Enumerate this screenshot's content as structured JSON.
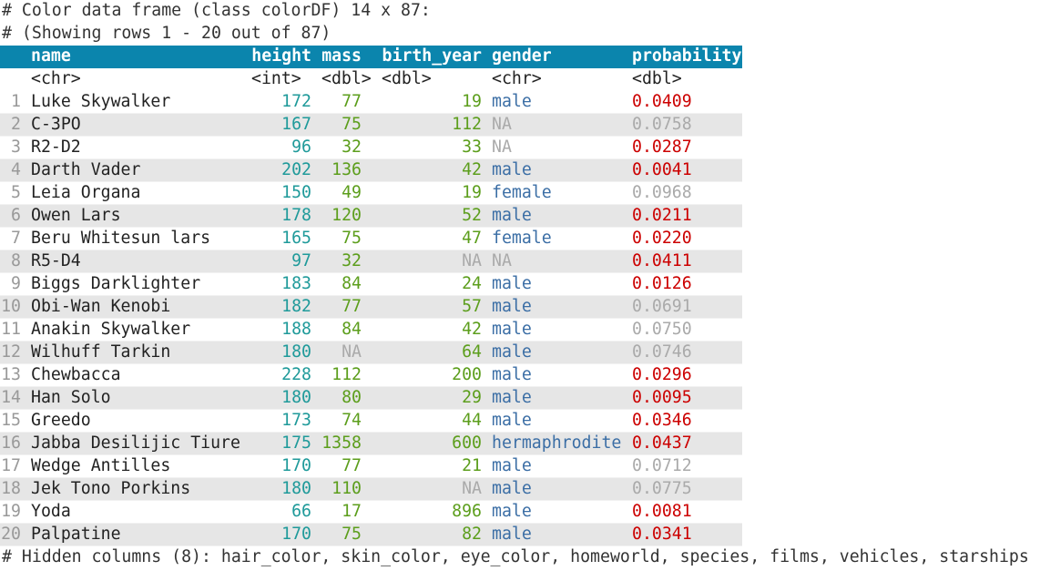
{
  "console": {
    "header_lines": [
      "# Color data frame (class colorDF) 14 x 87:",
      "# (Showing rows 1 - 20 out of 87)"
    ],
    "footer": "# Hidden columns (8): hair_color, skin_color, eye_color, homeworld, species, films, vehicles, starships",
    "header_background": "#0b85ad",
    "stripe_color": "#e6e6e6",
    "na_label": "NA",
    "na_color": "#aaaaaa",
    "row_number_color": "#999999",
    "columns": [
      {
        "name": "name",
        "type": "<chr>",
        "color": "#222222",
        "align": "left"
      },
      {
        "name": "height",
        "type": "<int>",
        "color": "#1f9a9a",
        "align": "right"
      },
      {
        "name": "mass",
        "type": "<dbl>",
        "color": "#5c9e1c",
        "align": "right"
      },
      {
        "name": "birth_year",
        "type": "<dbl>",
        "color": "#5c9e1c",
        "align": "right"
      },
      {
        "name": "gender",
        "type": "<chr>",
        "color": "#3b6ea5",
        "align": "left"
      },
      {
        "name": "probability",
        "type": "<dbl>",
        "color": "#cc0000",
        "align": "left"
      }
    ],
    "rows": [
      [
        "1",
        "Luke Skywalker",
        "172",
        "77",
        "19",
        "male",
        "0.0409"
      ],
      [
        "2",
        "C-3PO",
        "167",
        "75",
        "112",
        "NA",
        "0.0758"
      ],
      [
        "3",
        "R2-D2",
        "96",
        "32",
        "33",
        "NA",
        "0.0287"
      ],
      [
        "4",
        "Darth Vader",
        "202",
        "136",
        "42",
        "male",
        "0.0041"
      ],
      [
        "5",
        "Leia Organa",
        "150",
        "49",
        "19",
        "female",
        "0.0968"
      ],
      [
        "6",
        "Owen Lars",
        "178",
        "120",
        "52",
        "male",
        "0.0211"
      ],
      [
        "7",
        "Beru Whitesun lars",
        "165",
        "75",
        "47",
        "female",
        "0.0220"
      ],
      [
        "8",
        "R5-D4",
        "97",
        "32",
        "NA",
        "NA",
        "0.0411"
      ],
      [
        "9",
        "Biggs Darklighter",
        "183",
        "84",
        "24",
        "male",
        "0.0126"
      ],
      [
        "10",
        "Obi-Wan Kenobi",
        "182",
        "77",
        "57",
        "male",
        "0.0691"
      ],
      [
        "11",
        "Anakin Skywalker",
        "188",
        "84",
        "42",
        "male",
        "0.0750"
      ],
      [
        "12",
        "Wilhuff Tarkin",
        "180",
        "NA",
        "64",
        "male",
        "0.0746"
      ],
      [
        "13",
        "Chewbacca",
        "228",
        "112",
        "200",
        "male",
        "0.0296"
      ],
      [
        "14",
        "Han Solo",
        "180",
        "80",
        "29",
        "male",
        "0.0095"
      ],
      [
        "15",
        "Greedo",
        "173",
        "74",
        "44",
        "male",
        "0.0346"
      ],
      [
        "16",
        "Jabba Desilijic Tiure",
        "175",
        "1358",
        "600",
        "hermaphrodite",
        "0.0437"
      ],
      [
        "17",
        "Wedge Antilles",
        "170",
        "77",
        "21",
        "male",
        "0.0712"
      ],
      [
        "18",
        "Jek Tono Porkins",
        "180",
        "110",
        "NA",
        "male",
        "0.0775"
      ],
      [
        "19",
        "Yoda",
        "66",
        "17",
        "896",
        "male",
        "0.0081"
      ],
      [
        "20",
        "Palpatine",
        "170",
        "75",
        "82",
        "male",
        "0.0341"
      ]
    ],
    "probability_colors": [
      "#cc0000",
      "#aaaaaa",
      "#cc0000",
      "#cc0000",
      "#aaaaaa",
      "#cc0000",
      "#cc0000",
      "#cc0000",
      "#cc0000",
      "#aaaaaa",
      "#aaaaaa",
      "#aaaaaa",
      "#cc0000",
      "#cc0000",
      "#cc0000",
      "#cc0000",
      "#aaaaaa",
      "#aaaaaa",
      "#cc0000",
      "#cc0000"
    ]
  }
}
